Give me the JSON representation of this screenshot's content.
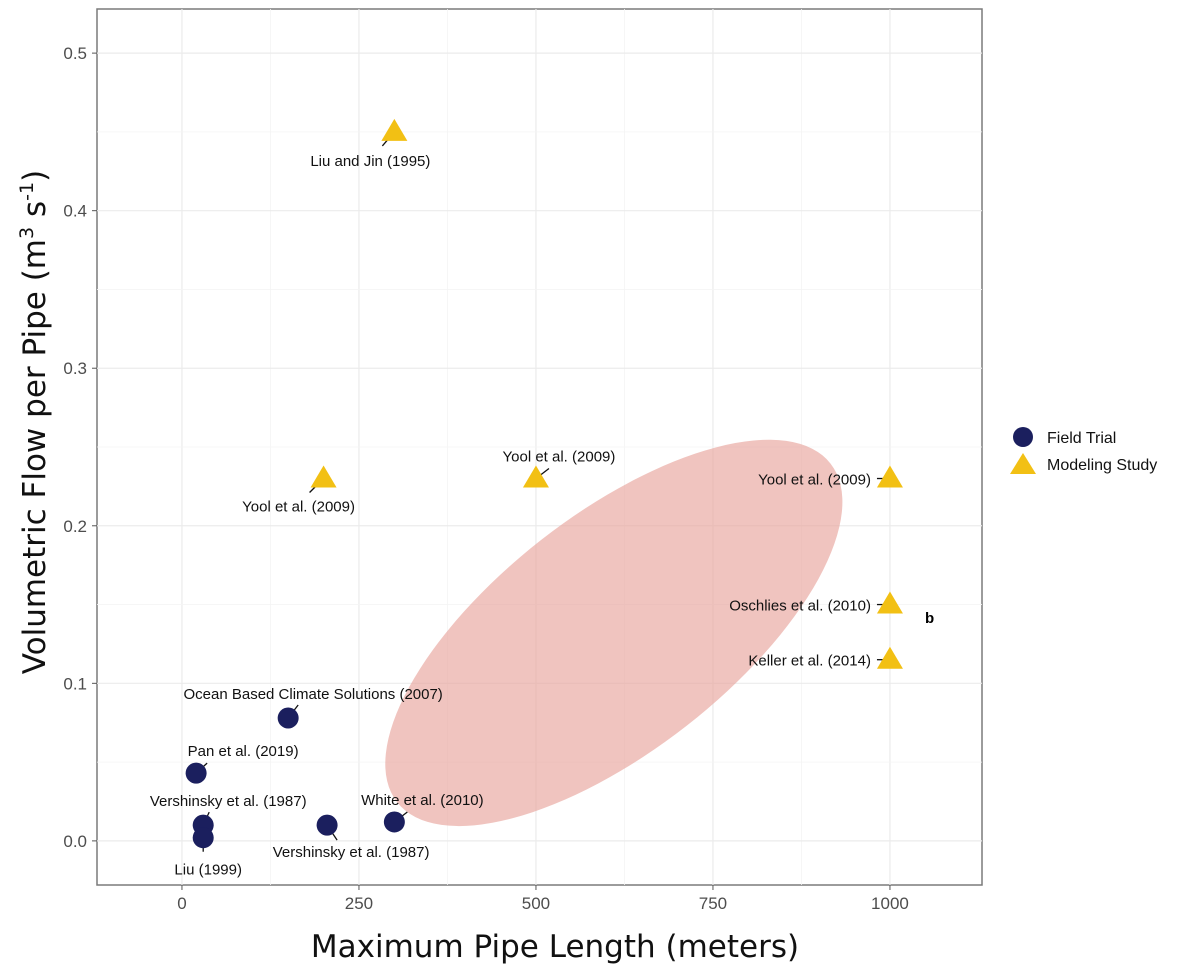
{
  "chart_data": {
    "type": "scatter",
    "xlabel": "Maximum Pipe Length (meters)",
    "ylabel": {
      "prefix": "Volumetric Flow per Pipe (m",
      "sup1": "3",
      "mid": " s",
      "sup2": "-1",
      "suffix": ")"
    },
    "xlim": [
      -120,
      1130
    ],
    "ylim": [
      -0.028,
      0.528
    ],
    "x_ticks": [
      0,
      250,
      500,
      750,
      1000
    ],
    "x_tick_labels": [
      "0",
      "250",
      "500",
      "750",
      "1000"
    ],
    "y_ticks": [
      0.0,
      0.1,
      0.2,
      0.3,
      0.4,
      0.5
    ],
    "y_tick_labels": [
      "0.0",
      "0.1",
      "0.2",
      "0.3",
      "0.4",
      "0.5"
    ],
    "grid": true,
    "legend_position": "right",
    "series": [
      {
        "name": "Field Trial",
        "marker": "circle",
        "color": "#1b1f5e",
        "points": [
          {
            "x": 20,
            "y": 0.043,
            "label": "Pan et al. (2019)"
          },
          {
            "x": 150,
            "y": 0.078,
            "label": "Ocean Based Climate Solutions (2007)"
          },
          {
            "x": 30,
            "y": 0.01,
            "label": "Vershinsky et al. (1987)"
          },
          {
            "x": 30,
            "y": 0.002,
            "label": "Liu (1999)"
          },
          {
            "x": 205,
            "y": 0.01,
            "label": "Vershinsky et al. (1987)"
          },
          {
            "x": 300,
            "y": 0.012,
            "label": "White et al. (2010)"
          }
        ]
      },
      {
        "name": "Modeling Study",
        "marker": "triangle",
        "color": "#f2c014",
        "points": [
          {
            "x": 300,
            "y": 0.45,
            "label": "Liu and Jin (1995)"
          },
          {
            "x": 200,
            "y": 0.23,
            "label": "Yool et al. (2009)"
          },
          {
            "x": 500,
            "y": 0.23,
            "label": "Yool et al. (2009)"
          },
          {
            "x": 1000,
            "y": 0.23,
            "label": "Yool et al. (2009)"
          },
          {
            "x": 1000,
            "y": 0.15,
            "label": "Oschlies et al. (2010)"
          },
          {
            "x": 1000,
            "y": 0.115,
            "label": "Keller et al. (2014)"
          }
        ]
      }
    ],
    "highlight_region": {
      "shape": "ellipse",
      "center": [
        610,
        0.132
      ],
      "color": "#e8a49c"
    },
    "stray_text": "b"
  }
}
